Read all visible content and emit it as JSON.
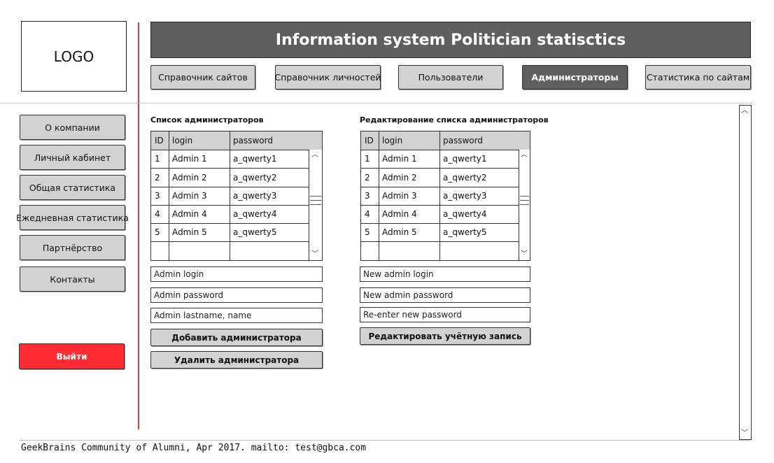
{
  "logo": "LOGO",
  "header": {
    "title": "Information system Politician statisctics"
  },
  "tabs": [
    {
      "label": "Справочник сайтов"
    },
    {
      "label": "Справочник личностей"
    },
    {
      "label": "Пользователи"
    },
    {
      "label": "Администраторы",
      "active": true
    },
    {
      "label": "Статистика по сайтам"
    }
  ],
  "sidebar": {
    "items": [
      {
        "label": "О компании"
      },
      {
        "label": "Личный кабинет"
      },
      {
        "label": "Общая статистика"
      },
      {
        "label": "Ежедневная статистика"
      },
      {
        "label": "Партнёрство"
      },
      {
        "label": "Контакты"
      }
    ],
    "logout": "Выйти"
  },
  "admin_list": {
    "title": "Список администраторов",
    "columns": [
      "ID",
      "login",
      "password"
    ],
    "rows": [
      [
        "1",
        "Admin 1",
        "a_qwerty1"
      ],
      [
        "2",
        "Admin 2",
        "a_qwerty2"
      ],
      [
        "3",
        "Admin 3",
        "a_qwerty3"
      ],
      [
        "4",
        "Admin 4",
        "a_qwerty4"
      ],
      [
        "5",
        "Admin 5",
        "a_qwerty5"
      ]
    ],
    "inputs": {
      "login_placeholder": "Admin login",
      "password_placeholder": "Admin password",
      "name_placeholder": "Admin lastname, name"
    },
    "add_button": "Добавить администратора",
    "delete_button": "Удалить администратора"
  },
  "admin_edit": {
    "title": "Редактирование списка администраторов",
    "columns": [
      "ID",
      "login",
      "password"
    ],
    "rows": [
      [
        "1",
        "Admin 1",
        "a_qwerty1"
      ],
      [
        "2",
        "Admin 2",
        "a_qwerty2"
      ],
      [
        "3",
        "Admin 3",
        "a_qwerty3"
      ],
      [
        "4",
        "Admin 4",
        "a_qwerty4"
      ],
      [
        "5",
        "Admin 5",
        "a_qwerty5"
      ]
    ],
    "inputs": {
      "new_login_placeholder": "New admin login",
      "new_password_placeholder": "New admin password",
      "reenter_password_placeholder": "Re-enter new password"
    },
    "edit_button": "Редактировать учётную запись"
  },
  "footer": {
    "text": "GeekBrains Community of Alumni, Apr 2017. mailto: test@gbca.com"
  },
  "icons": {
    "up": "chevron-up-icon",
    "down": "chevron-down-icon"
  },
  "colors": {
    "header_bg": "#5f5f5f",
    "active_tab_bg": "#5f5f5f",
    "button_bg": "#d2d2d2",
    "logout_bg": "#ff2a32",
    "divider_red": "#e03a3a"
  }
}
